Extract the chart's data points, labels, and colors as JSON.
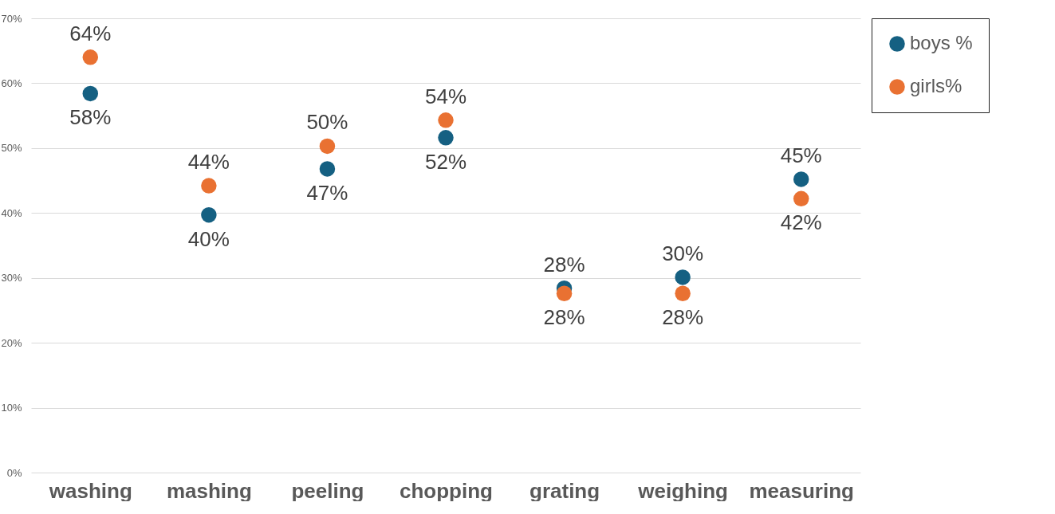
{
  "chart_data": {
    "type": "scatter",
    "categories": [
      "washing",
      "mashing",
      "peeling",
      "chopping",
      "grating",
      "weighing",
      "measuring"
    ],
    "series": [
      {
        "name": "boys %",
        "color": "#156082",
        "values": [
          58.4,
          39.7,
          46.8,
          51.6,
          28.4,
          30.1,
          45.2
        ],
        "value_labels": [
          "58%",
          "40%",
          "47%",
          "52%",
          "28%",
          "30%",
          "45%"
        ]
      },
      {
        "name": "girls%",
        "color": "#e97132",
        "values": [
          64.0,
          44.2,
          50.3,
          54.3,
          27.6,
          27.6,
          42.2
        ],
        "value_labels": [
          "64%",
          "44%",
          "50%",
          "54%",
          "28%",
          "28%",
          "42%"
        ]
      }
    ],
    "ylim": [
      0,
      70
    ],
    "yticks": [
      {
        "value": 0,
        "label": "0%"
      },
      {
        "value": 10,
        "label": "10%"
      },
      {
        "value": 20,
        "label": "20%"
      },
      {
        "value": 30,
        "label": "30%"
      },
      {
        "value": 40,
        "label": "40%"
      },
      {
        "value": 50,
        "label": "50%"
      },
      {
        "value": 60,
        "label": "60%"
      },
      {
        "value": 70,
        "label": "70%"
      }
    ],
    "grid": "y",
    "legend": "top right",
    "marker": "circle"
  }
}
